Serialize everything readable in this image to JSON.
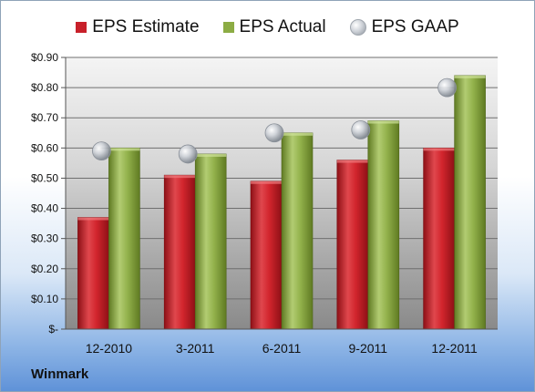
{
  "company": "Winmark",
  "legend": [
    {
      "label": "EPS Estimate",
      "color": "#c8202a",
      "kind": "bar"
    },
    {
      "label": "EPS Actual",
      "color": "#8cac44",
      "kind": "bar"
    },
    {
      "label": "EPS GAAP",
      "color": "#b9bec6",
      "kind": "dot"
    }
  ],
  "chart_data": {
    "type": "bar",
    "categories": [
      "12-2010",
      "3-2011",
      "6-2011",
      "9-2011",
      "12-2011"
    ],
    "series": [
      {
        "name": "EPS Estimate",
        "values": [
          0.37,
          0.51,
          0.49,
          0.56,
          0.6
        ],
        "color": "#c8202a"
      },
      {
        "name": "EPS Actual",
        "values": [
          0.6,
          0.58,
          0.65,
          0.69,
          0.84
        ],
        "color": "#8cac44"
      },
      {
        "name": "EPS GAAP",
        "values": [
          0.59,
          0.58,
          0.65,
          0.66,
          0.8
        ],
        "color": "#b9bec6",
        "style": "marker"
      }
    ],
    "ylim": [
      0,
      0.9
    ],
    "yticks": [
      0,
      0.1,
      0.2,
      0.3,
      0.4,
      0.5,
      0.6,
      0.7,
      0.8,
      0.9
    ],
    "ytick_labels": [
      "$-",
      "$0.10",
      "$0.20",
      "$0.30",
      "$0.40",
      "$0.50",
      "$0.60",
      "$0.70",
      "$0.80",
      "$0.90"
    ],
    "grid": true,
    "legend_position": "top"
  }
}
